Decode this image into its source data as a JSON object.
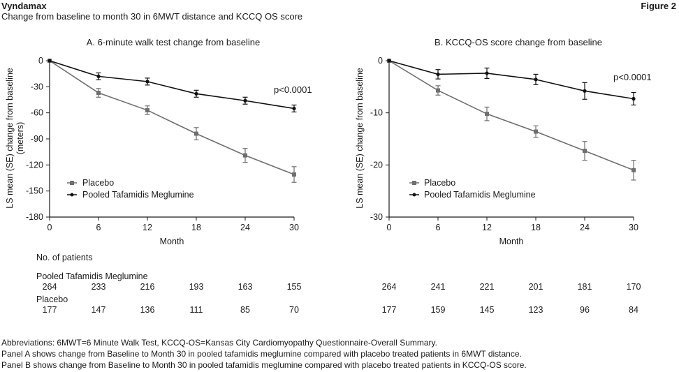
{
  "header": {
    "title": "Vyndamax",
    "subtitle": "Change from baseline to month 30 in 6MWT distance and KCCQ OS score",
    "figure_label": "Figure 2"
  },
  "colors": {
    "placebo": "#6f6f6f",
    "tafamidis": "#111111",
    "axis": "#1a1a1a"
  },
  "chart_data": [
    {
      "type": "line",
      "title": "A. 6-minute walk test change from baseline",
      "xlabel": "Month",
      "ylabel": "LS mean (SE) change from baseline (meters)",
      "ylabel_lines": [
        "LS mean (SE) change from baseline",
        "(meters)"
      ],
      "x": [
        0,
        6,
        12,
        18,
        24,
        30
      ],
      "xlim": [
        0,
        30
      ],
      "ylim": [
        -180,
        0
      ],
      "yticks": [
        0,
        -30,
        -60,
        -90,
        -120,
        -150,
        -180
      ],
      "grid": false,
      "legend_position": "bottom-left",
      "annotation": "p<0.0001",
      "series": [
        {
          "name": "Placebo",
          "values": [
            0,
            -37,
            -57,
            -84,
            -109,
            -131
          ],
          "se": [
            0,
            5,
            5,
            7,
            8,
            9
          ],
          "marker": "square"
        },
        {
          "name": "Pooled Tafamidis Meglumine",
          "values": [
            0,
            -18,
            -24,
            -38,
            -46,
            -55
          ],
          "se": [
            0,
            4,
            4,
            4,
            4,
            4
          ],
          "marker": "circle"
        }
      ]
    },
    {
      "type": "line",
      "title": "B. KCCQ-OS score change from baseline",
      "xlabel": "Month",
      "ylabel": "LS mean (SE) change from baseline",
      "ylabel_lines": [
        "LS mean (SE) change from baseline"
      ],
      "x": [
        0,
        6,
        12,
        18,
        24,
        30
      ],
      "xlim": [
        0,
        30
      ],
      "ylim": [
        -30,
        0
      ],
      "yticks": [
        0,
        -10,
        -20,
        -30
      ],
      "grid": false,
      "legend_position": "bottom-left",
      "annotation": "p<0.0001",
      "series": [
        {
          "name": "Placebo",
          "values": [
            0,
            -5.7,
            -10.2,
            -13.6,
            -17.3,
            -21
          ],
          "se": [
            0,
            0.9,
            1.3,
            1.1,
            1.8,
            1.9
          ],
          "marker": "square"
        },
        {
          "name": "Pooled Tafamidis Meglumine",
          "values": [
            0,
            -2.6,
            -2.4,
            -3.6,
            -5.8,
            -7.3
          ],
          "se": [
            0,
            0.9,
            1,
            1,
            1.6,
            1.2
          ],
          "marker": "circle"
        }
      ]
    }
  ],
  "patients": {
    "heading": "No. of patients",
    "groups": [
      {
        "label": "Pooled Tafamidis Meglumine",
        "a": [
          "264",
          "233",
          "216",
          "193",
          "163",
          "155"
        ],
        "b": [
          "264",
          "241",
          "221",
          "201",
          "181",
          "170"
        ]
      },
      {
        "label": "Placebo",
        "a": [
          "177",
          "147",
          "136",
          "111",
          "85",
          "70"
        ],
        "b": [
          "177",
          "159",
          "145",
          "123",
          "96",
          "84"
        ]
      }
    ]
  },
  "footnotes": [
    "Abbreviations: 6MWT=6 Minute Walk Test, KCCQ-OS=Kansas City Cardiomyopathy Questionnaire-Overall Summary.",
    "Panel A shows change from Baseline to Month 30 in pooled tafamidis meglumine compared with placebo treated patients in 6MWT distance.",
    "Panel B shows change from Baseline to Month 30 in pooled tafamidis meglumine compared with placebo treated patients in KCCQ-OS score."
  ]
}
